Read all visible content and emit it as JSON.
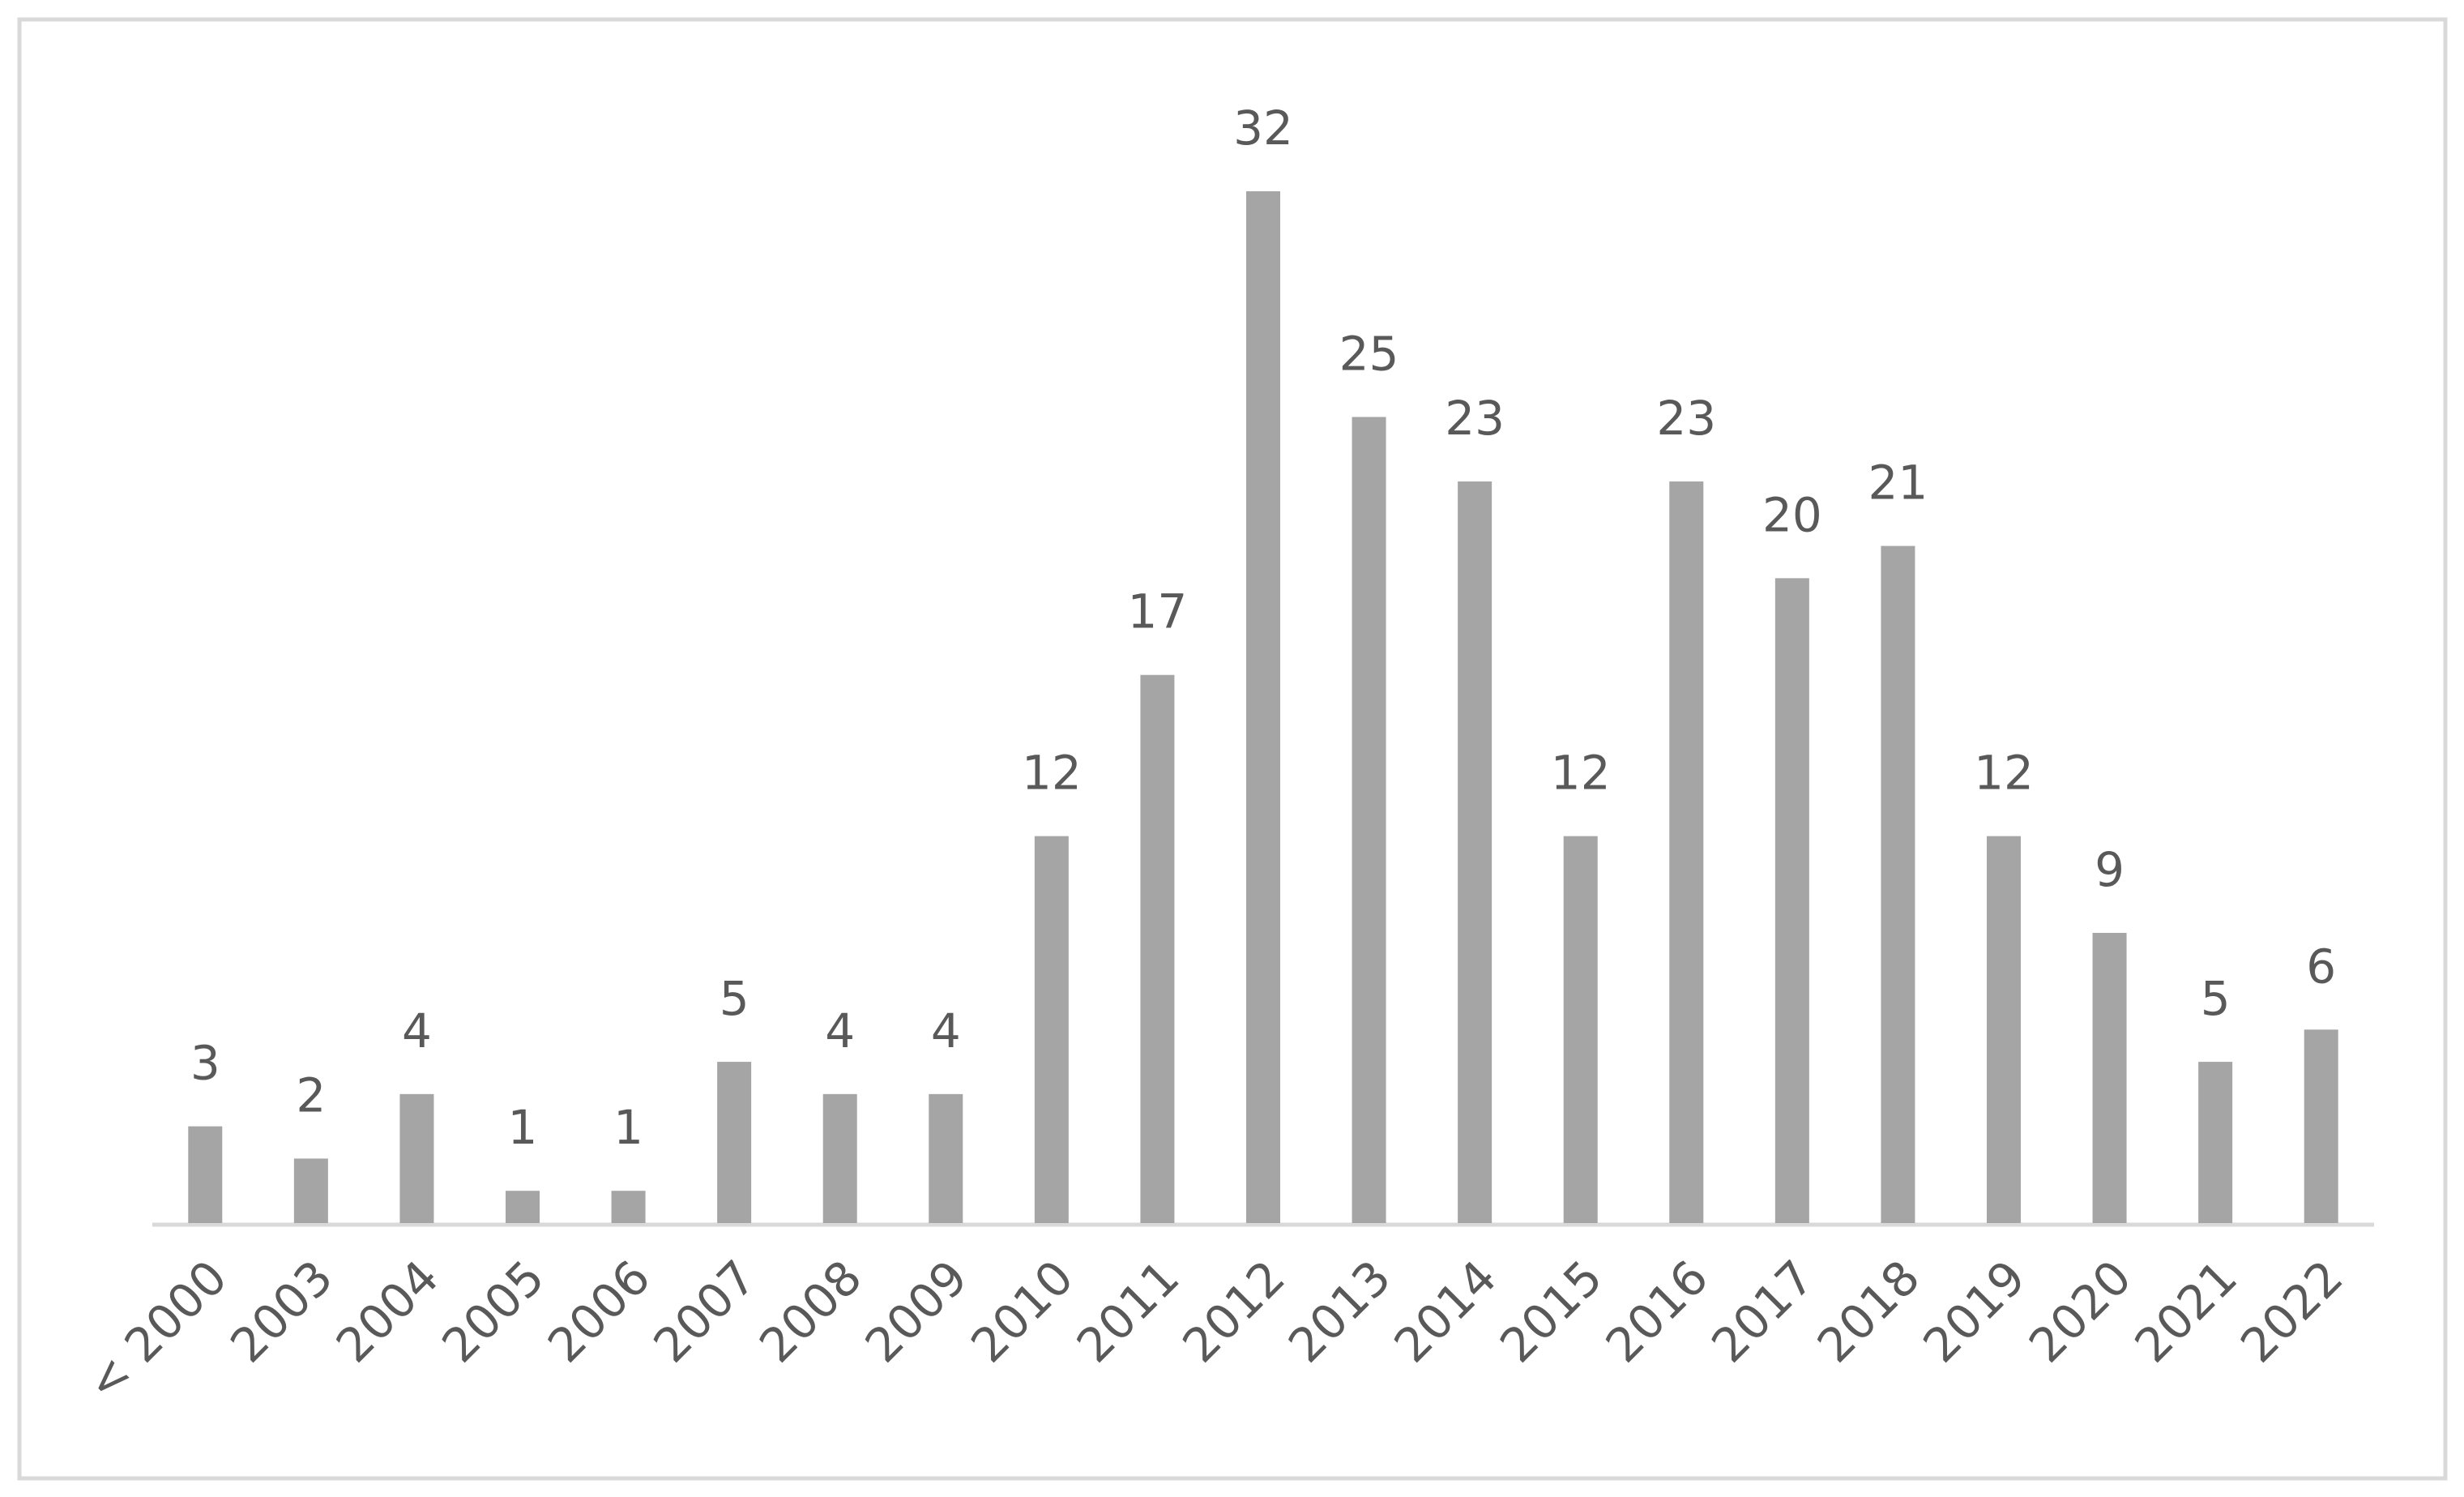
{
  "chart_data": {
    "type": "bar",
    "categories": [
      "< 2000",
      "2003",
      "2004",
      "2005",
      "2006",
      "2007",
      "2008",
      "2009",
      "2010",
      "2011",
      "2012",
      "2013",
      "2014",
      "2015",
      "2016",
      "2017",
      "2018",
      "2019",
      "2020",
      "2021",
      "2022"
    ],
    "values": [
      3,
      2,
      4,
      1,
      1,
      5,
      4,
      4,
      12,
      17,
      32,
      25,
      23,
      12,
      23,
      20,
      21,
      12,
      9,
      5,
      6
    ],
    "color": "#a5a5a5"
  }
}
